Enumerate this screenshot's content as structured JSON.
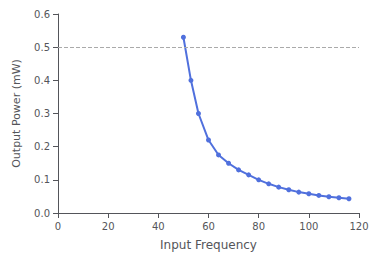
{
  "chart_data": {
    "type": "line",
    "xlabel": "Input Frequency",
    "ylabel": "Output Power (mW)",
    "x": [
      50,
      53,
      56,
      60,
      64,
      68,
      72,
      76,
      80,
      84,
      88,
      92,
      96,
      100,
      104,
      108,
      112,
      116
    ],
    "values": [
      0.53,
      0.4,
      0.3,
      0.22,
      0.175,
      0.15,
      0.13,
      0.115,
      0.1,
      0.088,
      0.078,
      0.07,
      0.063,
      0.058,
      0.053,
      0.049,
      0.046,
      0.043
    ],
    "marker": "circle",
    "xlim": [
      0,
      120
    ],
    "ylim": [
      0,
      0.6
    ],
    "xticks": [
      0,
      20,
      40,
      60,
      80,
      100,
      120
    ],
    "yticks": [
      {
        "value": 0,
        "label": "0.0"
      },
      0.1,
      0.2,
      0.3,
      0.4,
      0.5,
      0.6
    ],
    "hline": 0.5,
    "grid": false
  }
}
